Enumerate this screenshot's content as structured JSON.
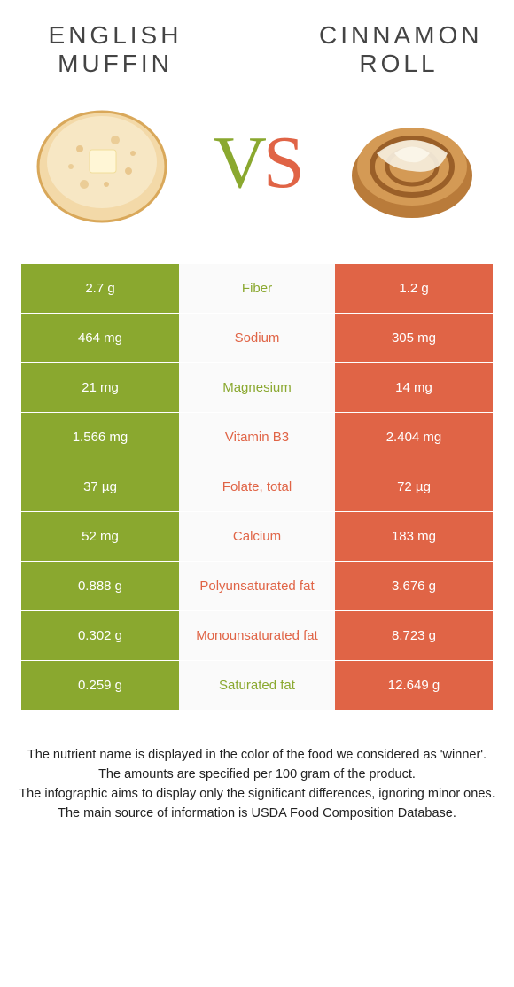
{
  "colors": {
    "left": "#8aa82f",
    "right": "#e06446",
    "text": "#333333",
    "mid_bg": "#fafafa"
  },
  "header": {
    "left_title": "English Muffin",
    "right_title": "Cinnamon Roll",
    "vs_v": "V",
    "vs_s": "S"
  },
  "rows": [
    {
      "label": "Fiber",
      "left": "2.7 g",
      "right": "1.2 g",
      "winner": "left"
    },
    {
      "label": "Sodium",
      "left": "464 mg",
      "right": "305 mg",
      "winner": "right"
    },
    {
      "label": "Magnesium",
      "left": "21 mg",
      "right": "14 mg",
      "winner": "left"
    },
    {
      "label": "Vitamin B3",
      "left": "1.566 mg",
      "right": "2.404 mg",
      "winner": "right"
    },
    {
      "label": "Folate, total",
      "left": "37 µg",
      "right": "72 µg",
      "winner": "right"
    },
    {
      "label": "Calcium",
      "left": "52 mg",
      "right": "183 mg",
      "winner": "right"
    },
    {
      "label": "Polyunsaturated fat",
      "left": "0.888 g",
      "right": "3.676 g",
      "winner": "right"
    },
    {
      "label": "Monounsaturated fat",
      "left": "0.302 g",
      "right": "8.723 g",
      "winner": "right"
    },
    {
      "label": "Saturated fat",
      "left": "0.259 g",
      "right": "12.649 g",
      "winner": "left"
    }
  ],
  "footer": {
    "line1": "The nutrient name is displayed in the color of the food we considered as 'winner'.",
    "line2": "The amounts are specified per 100 gram of the product.",
    "line3": "The infographic aims to display only the significant differences, ignoring minor ones.",
    "line4": "The main source of information is USDA Food Composition Database."
  }
}
